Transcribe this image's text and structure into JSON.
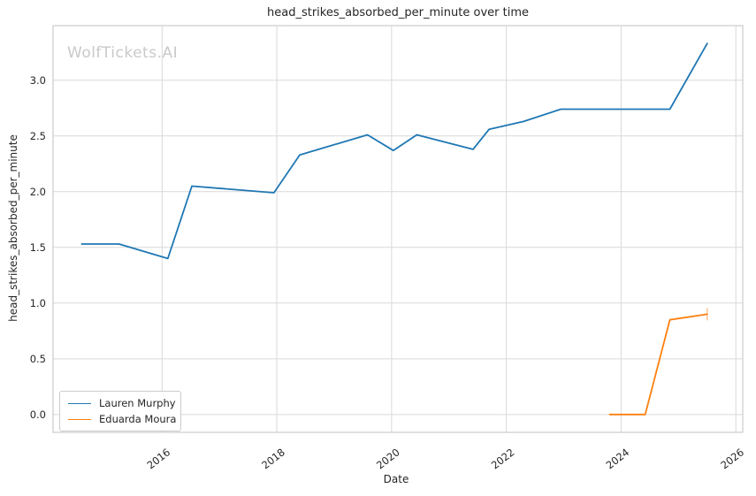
{
  "watermark": "WolfTickets.AI",
  "colors": {
    "grid": "#d9d9d9",
    "spine": "#cccccc",
    "text": "#262626",
    "watermark": "#c9c9c9"
  },
  "chart_data": {
    "type": "line",
    "title": "head_strikes_absorbed_per_minute over time",
    "xlabel": "Date",
    "ylabel": "head_strikes_absorbed_per_minute",
    "xlim": [
      2014.1,
      2026.12
    ],
    "ylim": [
      -0.16,
      3.49
    ],
    "xticks": [
      2016,
      2018,
      2020,
      2022,
      2024,
      2026
    ],
    "yticks": [
      0.0,
      0.5,
      1.0,
      1.5,
      2.0,
      2.5,
      3.0
    ],
    "grid": true,
    "legend_position": "lower left",
    "series": [
      {
        "name": "Lauren Murphy",
        "color": "#1f77b4",
        "x": [
          2014.6,
          2015.25,
          2016.1,
          2016.52,
          2017.95,
          2018.4,
          2019.58,
          2020.03,
          2020.44,
          2021.42,
          2021.7,
          2022.3,
          2022.95,
          2024.85,
          2025.5
        ],
        "y": [
          1.53,
          1.53,
          1.4,
          2.05,
          1.99,
          2.33,
          2.51,
          2.37,
          2.51,
          2.38,
          2.56,
          2.63,
          2.74,
          2.74,
          3.33
        ]
      },
      {
        "name": "Eduarda Moura",
        "color": "#ff7f0e",
        "end_tick": true,
        "x": [
          2023.8,
          2024.42,
          2024.85,
          2025.5
        ],
        "y": [
          0.0,
          0.0,
          0.85,
          0.9
        ]
      }
    ]
  }
}
